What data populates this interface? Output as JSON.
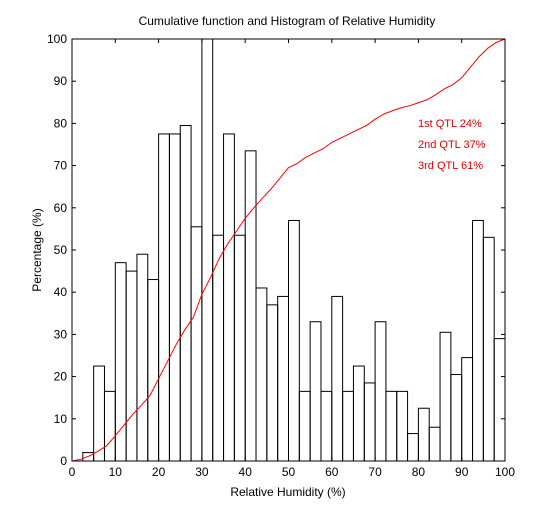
{
  "colors": {
    "background": "#ffffff",
    "axes": "#000000",
    "histogram": "#000000",
    "cumulative": "#ff0000",
    "annotation": "#dd0000"
  },
  "chart_data": {
    "type": "line",
    "title": "Cumulative function and Histogram of Relative Humidity",
    "xlabel": "Relative Humidity (%)",
    "ylabel": "Percentage (%)",
    "xlim": [
      0,
      100
    ],
    "ylim": [
      0,
      100
    ],
    "x_ticks": [
      0,
      10,
      20,
      30,
      40,
      50,
      60,
      70,
      80,
      90,
      100
    ],
    "y_ticks": [
      0,
      10,
      20,
      30,
      40,
      50,
      60,
      70,
      80,
      90,
      100
    ],
    "grid": false,
    "histogram": {
      "style": "stairs",
      "bin_edges": [
        0,
        2.5,
        5,
        7.5,
        10,
        12.5,
        15,
        17.5,
        20,
        22.5,
        25,
        27.5,
        30,
        32.5,
        35,
        37.5,
        40,
        42.5,
        45,
        47.5,
        50,
        52.5,
        55,
        57.5,
        60,
        62.5,
        65,
        67.5,
        70,
        72.5,
        75,
        77.5,
        80,
        82.5,
        85,
        87.5,
        90,
        92.5,
        95,
        97.5,
        100
      ],
      "values": [
        0,
        2,
        22.5,
        16.5,
        47,
        45,
        49,
        43,
        77.5,
        77.5,
        79.5,
        55.5,
        100,
        53.5,
        77.5,
        53.5,
        73.5,
        41,
        37,
        39,
        57,
        16.5,
        33,
        16.5,
        39,
        16.5,
        22.5,
        18.5,
        33,
        16.5,
        16.5,
        6.5,
        12.5,
        8,
        30.5,
        20.5,
        24.5,
        57,
        53,
        29
      ]
    },
    "cumulative": {
      "x": [
        0,
        2,
        4,
        6,
        8,
        10,
        12,
        14,
        16,
        18,
        20,
        22,
        24,
        26,
        28,
        30,
        32,
        34,
        36,
        38,
        40,
        42,
        44,
        46,
        48,
        50,
        52,
        54,
        56,
        58,
        60,
        62,
        64,
        66,
        68,
        70,
        72,
        74,
        76,
        78,
        80,
        82,
        84,
        86,
        88,
        90,
        92,
        94,
        96,
        98,
        100
      ],
      "y": [
        0,
        0.4,
        1.2,
        2.3,
        3.6,
        6,
        8.5,
        11,
        13.2,
        15.5,
        19.5,
        23.5,
        27.5,
        31,
        34,
        39.5,
        43.5,
        48,
        51.5,
        54.5,
        57.5,
        60,
        62.3,
        64.5,
        67,
        69.5,
        70.5,
        72,
        73,
        74,
        75.5,
        76.5,
        77.5,
        78.5,
        79.5,
        81,
        82.2,
        83,
        83.7,
        84.2,
        84.9,
        85.6,
        86.8,
        88.2,
        89.2,
        90.8,
        93.3,
        95.8,
        97.8,
        99.2,
        100
      ]
    },
    "annotations": [
      "1st QTL  24%",
      "2nd QTL  37%",
      "3rd QTL  61%"
    ]
  }
}
